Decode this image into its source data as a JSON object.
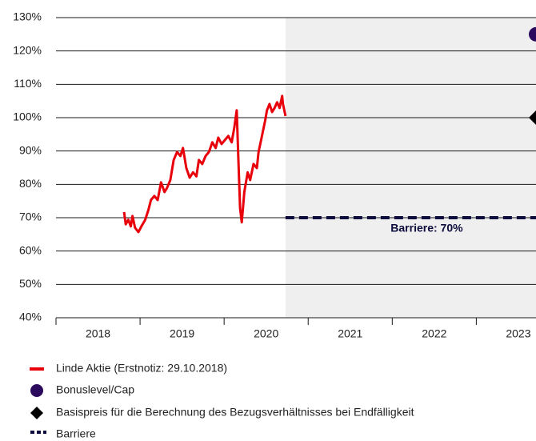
{
  "chart_data": {
    "type": "line",
    "xlim": [
      2018,
      2023.71
    ],
    "ylim": [
      40,
      130
    ],
    "xticks": [
      2018,
      2019,
      2020,
      2021,
      2022,
      2023
    ],
    "yticks": [
      {
        "value": 40,
        "label": "40%"
      },
      {
        "value": 50,
        "label": "50%"
      },
      {
        "value": 60,
        "label": "60%"
      },
      {
        "value": 70,
        "label": "70%"
      },
      {
        "value": 80,
        "label": "80%"
      },
      {
        "value": 90,
        "label": "90%"
      },
      {
        "value": 100,
        "label": "100%"
      },
      {
        "value": 110,
        "label": "110%"
      },
      {
        "value": 120,
        "label": "120%"
      },
      {
        "value": 130,
        "label": "130%"
      }
    ],
    "grid": true,
    "shaded_from": 2020.73,
    "series": [
      {
        "name": "Linde Aktie (Erstnotiz: 29.10.2018)",
        "color": "#e8000b",
        "style": "line",
        "x": [
          2018.81,
          2018.83,
          2018.86,
          2018.89,
          2018.91,
          2018.94,
          2018.98,
          2019.02,
          2019.06,
          2019.1,
          2019.13,
          2019.17,
          2019.21,
          2019.25,
          2019.29,
          2019.32,
          2019.36,
          2019.4,
          2019.44,
          2019.48,
          2019.51,
          2019.55,
          2019.59,
          2019.63,
          2019.67,
          2019.7,
          2019.74,
          2019.78,
          2019.82,
          2019.86,
          2019.9,
          2019.93,
          2019.97,
          2020.01,
          2020.05,
          2020.09,
          2020.12,
          2020.15,
          2020.17,
          2020.19,
          2020.21,
          2020.24,
          2020.28,
          2020.31,
          2020.35,
          2020.39,
          2020.41,
          2020.44,
          2020.47,
          2020.49,
          2020.51,
          2020.54,
          2020.57,
          2020.6,
          2020.63,
          2020.66,
          2020.69,
          2020.7,
          2020.73
        ],
        "values": [
          71.7,
          68,
          69.4,
          67.4,
          70.5,
          67,
          65.7,
          67.6,
          69.3,
          72.4,
          75.3,
          76.5,
          75.3,
          80.6,
          77.7,
          78.9,
          81.3,
          87.3,
          89.7,
          88.5,
          90.9,
          84.9,
          82,
          83.6,
          82.4,
          87.3,
          86.1,
          88.5,
          89.7,
          92.6,
          90.9,
          94,
          92.1,
          93.3,
          94.5,
          92.6,
          96.9,
          102.2,
          87.3,
          72.9,
          68.6,
          77.7,
          83.6,
          81.3,
          86.1,
          84.9,
          89.7,
          93.3,
          96.9,
          99.3,
          102.2,
          104.1,
          101.7,
          102.9,
          104.6,
          102.9,
          106.5,
          104.1,
          100.5
        ]
      },
      {
        "name": "Bonuslevel/Cap",
        "color": "#2b0a5e",
        "style": "circle",
        "x": [
          2023.71
        ],
        "values": [
          125
        ]
      },
      {
        "name": "Basispreis für die Berechnung des Bezugsverhältnisses bei Endfälligkeit",
        "color": "#000000",
        "style": "diamond",
        "x": [
          2023.71
        ],
        "values": [
          100
        ]
      },
      {
        "name": "Barriere",
        "color": "#0d0d3d",
        "style": "dashed",
        "x": [
          2020.73,
          2023.71
        ],
        "values": [
          70,
          70
        ],
        "label": "Barriere: 70%"
      }
    ]
  }
}
